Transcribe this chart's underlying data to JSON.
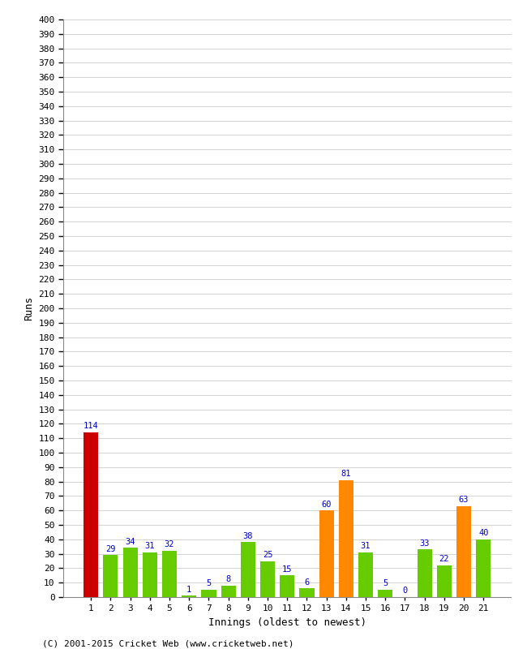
{
  "xlabel": "Innings (oldest to newest)",
  "ylabel": "Runs",
  "categories": [
    1,
    2,
    3,
    4,
    5,
    6,
    7,
    8,
    9,
    10,
    11,
    12,
    13,
    14,
    15,
    16,
    17,
    18,
    19,
    20,
    21
  ],
  "values": [
    114,
    29,
    34,
    31,
    32,
    1,
    5,
    8,
    38,
    25,
    15,
    6,
    60,
    81,
    31,
    5,
    0,
    33,
    22,
    63,
    40
  ],
  "colors": [
    "#cc0000",
    "#66cc00",
    "#66cc00",
    "#66cc00",
    "#66cc00",
    "#66cc00",
    "#66cc00",
    "#66cc00",
    "#66cc00",
    "#66cc00",
    "#66cc00",
    "#66cc00",
    "#ff8800",
    "#ff8800",
    "#66cc00",
    "#66cc00",
    "#66cc00",
    "#66cc00",
    "#66cc00",
    "#ff8800",
    "#66cc00"
  ],
  "ylim": [
    0,
    400
  ],
  "ytick_step": 10,
  "label_color": "#0000cc",
  "footer": "(C) 2001-2015 Cricket Web (www.cricketweb.net)",
  "bg_color": "#ffffff",
  "grid_color": "#cccccc",
  "bar_width": 0.75,
  "label_fontsize": 7.5,
  "tick_fontsize": 8,
  "xlabel_fontsize": 9,
  "ylabel_fontsize": 9,
  "footer_fontsize": 8
}
